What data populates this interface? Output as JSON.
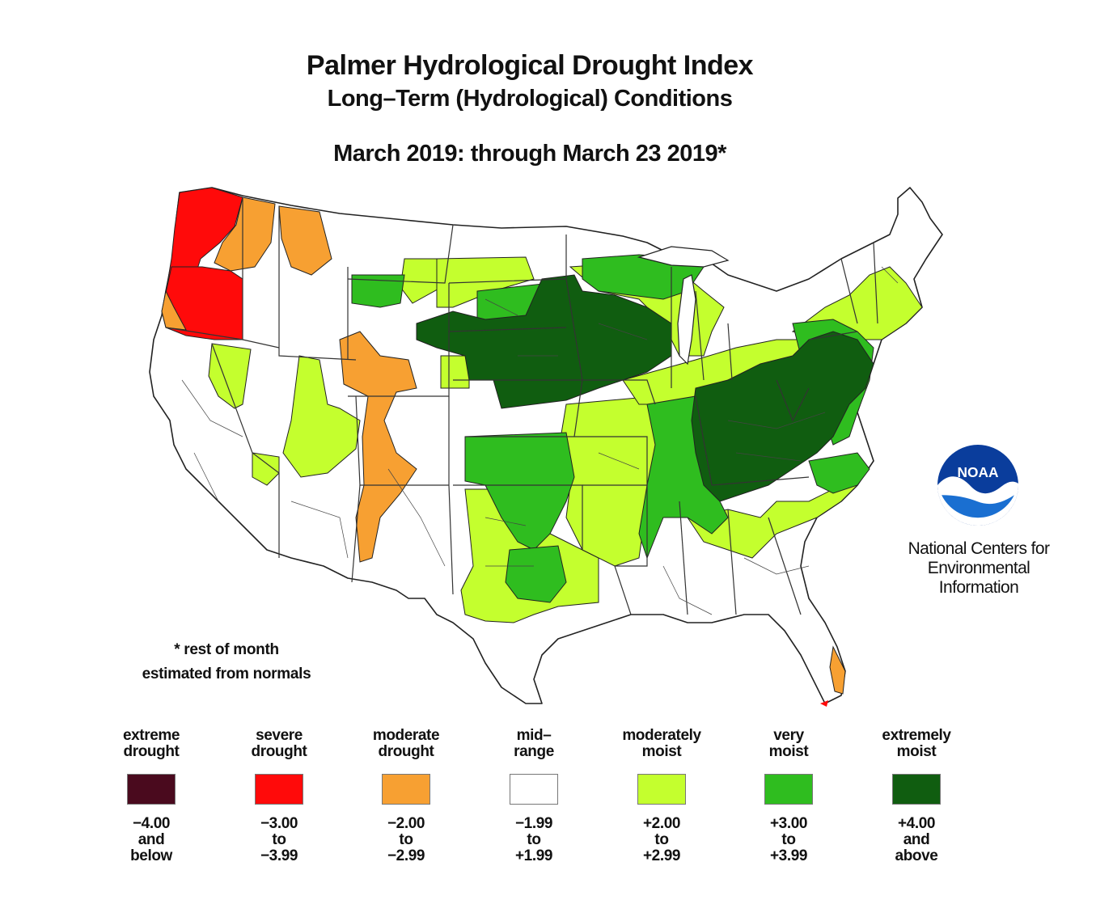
{
  "title": {
    "main": "Palmer Hydrological Drought Index",
    "sub": "Long–Term (Hydrological) Conditions",
    "date": "March 2019: through March 23 2019*"
  },
  "note": {
    "line1": "* rest of month",
    "line2": "estimated from normals"
  },
  "agency": {
    "logo_text": "NOAA",
    "line1": "National Centers for",
    "line2": "Environmental",
    "line3": "Information"
  },
  "legend": [
    {
      "label1": "extreme",
      "label2": "drought",
      "color": "#4a0a1e",
      "r1": "−4.00",
      "r2": "and",
      "r3": "below"
    },
    {
      "label1": "severe",
      "label2": "drought",
      "color": "#ff0a0a",
      "r1": "−3.00",
      "r2": "to",
      "r3": "−3.99"
    },
    {
      "label1": "moderate",
      "label2": "drought",
      "color": "#f7a032",
      "r1": "−2.00",
      "r2": "to",
      "r3": "−2.99"
    },
    {
      "label1": "mid–",
      "label2": "range",
      "color": "#ffffff",
      "r1": "−1.99",
      "r2": "to",
      "r3": "+1.99"
    },
    {
      "label1": "moderately",
      "label2": "moist",
      "color": "#c4ff2e",
      "r1": "+2.00",
      "r2": "to",
      "r3": "+2.99"
    },
    {
      "label1": "very",
      "label2": "moist",
      "color": "#2fbd1f",
      "r1": "+3.00",
      "r2": "to",
      "r3": "+3.99"
    },
    {
      "label1": "extremely",
      "label2": "moist",
      "color": "#105d10",
      "r1": "+4.00",
      "r2": "and",
      "r3": "above"
    }
  ],
  "colors": {
    "severe_drought": "#ff0a0a",
    "moderate_drought": "#f7a032",
    "mid_range": "#ffffff",
    "moderately_moist": "#c4ff2e",
    "very_moist": "#2fbd1f",
    "extremely_moist": "#105d10",
    "noaa_blue": "#0a3d9c"
  }
}
